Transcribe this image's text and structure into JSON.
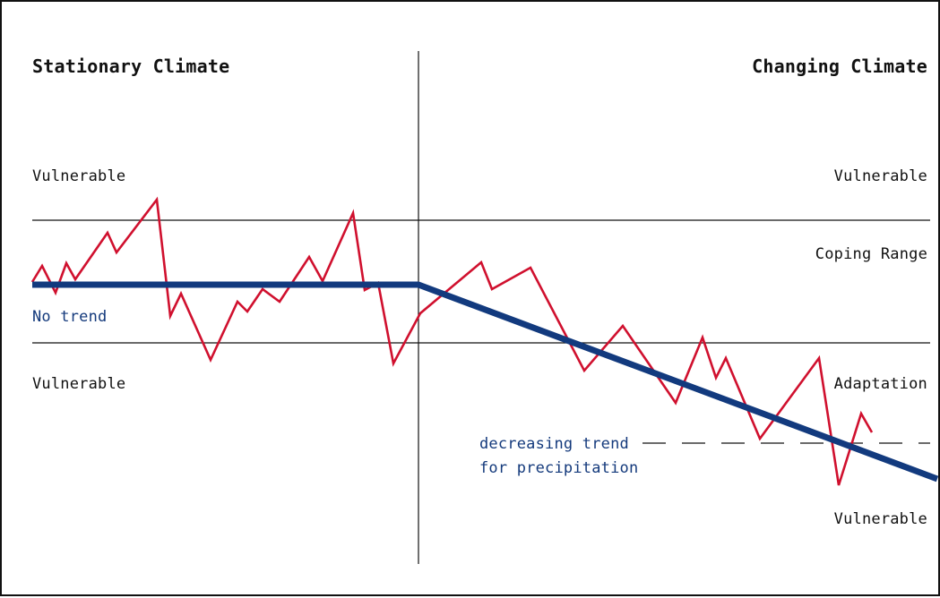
{
  "titles": {
    "left": "Stationary Climate",
    "right": "Changing Climate"
  },
  "labels": {
    "vulnerable_top_left": "Vulnerable",
    "vulnerable_top_right": "Vulnerable",
    "coping_range": "Coping Range",
    "no_trend": "No trend",
    "vulnerable_mid_left": "Vulnerable",
    "adaptation": "Adaptation",
    "decreasing_trend_line1": "decreasing trend",
    "decreasing_trend_line2": "for precipitation",
    "vulnerable_bottom_right": "Vulnerable"
  },
  "colors": {
    "frame": "#111111",
    "signal": "#d0102e",
    "trend": "#123a7e",
    "annotation_text": "#143a7c"
  }
}
